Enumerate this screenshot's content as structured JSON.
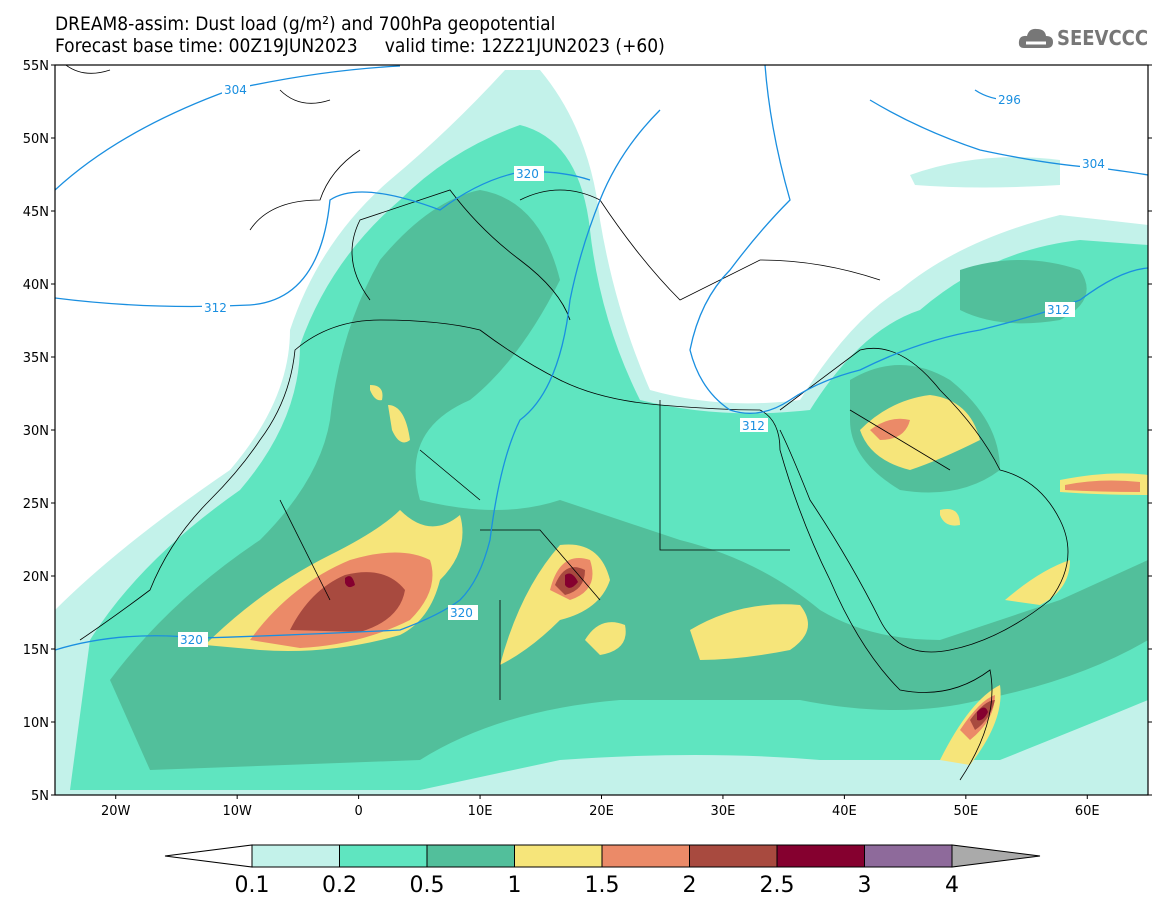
{
  "header": {
    "title": "DREAM8-assim: Dust load (g/m²) and 700hPa geopotential",
    "subtitle": "Forecast base time: 00Z19JUN2023     valid time: 12Z21JUN2023 (+60)",
    "logo_text": "SEEVCCC"
  },
  "axes": {
    "lat_labels": [
      "55N",
      "50N",
      "45N",
      "40N",
      "35N",
      "30N",
      "25N",
      "20N",
      "15N",
      "10N",
      "5N"
    ],
    "lat_values": [
      55,
      50,
      45,
      40,
      35,
      30,
      25,
      20,
      15,
      10,
      5
    ],
    "lon_labels": [
      "20W",
      "10W",
      "0",
      "10E",
      "20E",
      "30E",
      "40E",
      "50E",
      "60E"
    ],
    "lon_values": [
      -20,
      -10,
      0,
      10,
      20,
      30,
      40,
      50,
      60
    ],
    "lon_range": [
      -25,
      65
    ],
    "lat_range": [
      5,
      55
    ]
  },
  "contours": {
    "labels": [
      "304",
      "296",
      "320",
      "304",
      "312",
      "312",
      "312",
      "320",
      "320"
    ]
  },
  "colorbar": {
    "labels": [
      "0.1",
      "0.2",
      "0.5",
      "1",
      "1.5",
      "2",
      "2.5",
      "3",
      "4"
    ],
    "colors": [
      "#c3f2ea",
      "#5fe5c0",
      "#52bf9b",
      "#f6e57a",
      "#eb8a68",
      "#a84a3f",
      "#85002f",
      "#8e6a9b"
    ],
    "over_color": "#aaaaaa"
  }
}
